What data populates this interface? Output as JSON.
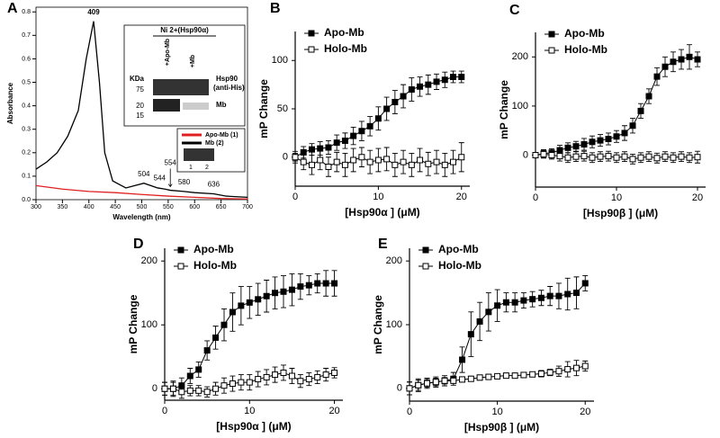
{
  "chart_data": [
    {
      "type": "line",
      "panel": "A",
      "xlabel": "Wavelength (nm)",
      "ylabel": "Absorbance",
      "xlim": [
        300,
        700
      ],
      "ylim": [
        0,
        0.82
      ],
      "xticks": [
        300,
        350,
        400,
        450,
        500,
        550,
        600,
        650,
        700
      ],
      "yticks": [
        {
          "value": 0,
          "label": "0.0"
        },
        0.1,
        0.2,
        0.3,
        0.4,
        0.5,
        0.6,
        0.7,
        0.8
      ],
      "series": [
        {
          "name": "Apo-Mb (1)",
          "color": "#e02020",
          "x": [
            300,
            350,
            400,
            450,
            500,
            550,
            600,
            650,
            700
          ],
          "values": [
            0.06,
            0.045,
            0.035,
            0.03,
            0.022,
            0.015,
            0.01,
            0.005,
            0.003
          ]
        },
        {
          "name": "Mb (2)",
          "color": "#000000",
          "x": [
            300,
            320,
            340,
            360,
            380,
            395,
            409,
            420,
            430,
            445,
            470,
            504,
            530,
            544,
            554,
            580,
            600,
            636,
            660,
            700
          ],
          "values": [
            0.13,
            0.16,
            0.2,
            0.27,
            0.38,
            0.6,
            0.76,
            0.5,
            0.2,
            0.08,
            0.05,
            0.07,
            0.05,
            0.045,
            0.04,
            0.035,
            0.03,
            0.025,
            0.015,
            0.01
          ]
        }
      ],
      "annotations": [
        "409",
        "504",
        "544",
        "554",
        "580",
        "636"
      ],
      "inset": {
        "title": "Ni 2+(Hsp90α)",
        "lanes": [
          "+Apo-Mb",
          "+Mb"
        ],
        "unit": "KDa",
        "markers": [
          "75",
          "20",
          "15"
        ],
        "bands": [
          "Hsp90",
          "(anti-His)",
          "Mb"
        ],
        "lane_numbers": [
          "1",
          "2"
        ]
      }
    },
    {
      "type": "line",
      "panel": "B",
      "xlabel": "[Hsp90α ] (μM)",
      "ylabel": "mP Change",
      "xlim": [
        0,
        21
      ],
      "ylim": [
        -30,
        130
      ],
      "xticks": [
        0,
        10,
        20
      ],
      "yticks": [
        0,
        50,
        100
      ],
      "x": [
        0,
        1,
        2,
        3,
        4,
        5,
        6,
        7,
        8,
        9,
        10,
        11,
        12,
        13,
        14,
        15,
        16,
        17,
        18,
        19,
        20
      ],
      "series": [
        {
          "name": "Apo-Mb",
          "color": "#000000",
          "marker": "filled",
          "values": [
            0,
            5,
            8,
            9,
            10,
            15,
            17,
            22,
            27,
            32,
            40,
            50,
            57,
            63,
            70,
            73,
            75,
            78,
            80,
            83,
            83
          ],
          "errors": [
            4,
            6,
            6,
            7,
            7,
            8,
            8,
            9,
            10,
            10,
            12,
            12,
            12,
            12,
            12,
            10,
            10,
            8,
            8,
            6,
            6
          ]
        },
        {
          "name": "Holo-Mb",
          "color": "#000000",
          "marker": "open",
          "values": [
            0,
            -5,
            -8,
            -3,
            -10,
            -5,
            -8,
            -3,
            0,
            -5,
            -3,
            -2,
            -8,
            -5,
            -8,
            -3,
            -7,
            -5,
            -8,
            -5,
            0
          ],
          "errors": [
            6,
            8,
            10,
            10,
            10,
            10,
            12,
            12,
            10,
            12,
            12,
            12,
            12,
            12,
            12,
            12,
            12,
            12,
            12,
            12,
            15
          ]
        }
      ]
    },
    {
      "type": "line",
      "panel": "C",
      "xlabel": "[Hsp90β ] (μM)",
      "ylabel": "mP Change",
      "xlim": [
        0,
        21
      ],
      "ylim": [
        -65,
        250
      ],
      "xticks": [
        0,
        10,
        20
      ],
      "yticks": [
        0,
        100,
        200
      ],
      "x": [
        0,
        1,
        2,
        3,
        4,
        5,
        6,
        7,
        8,
        9,
        10,
        11,
        12,
        13,
        14,
        15,
        16,
        17,
        18,
        19,
        20
      ],
      "series": [
        {
          "name": "Apo-Mb",
          "color": "#000000",
          "marker": "filled",
          "values": [
            0,
            3,
            5,
            10,
            15,
            18,
            22,
            27,
            30,
            33,
            38,
            45,
            60,
            90,
            120,
            160,
            180,
            190,
            195,
            200,
            195
          ],
          "errors": [
            5,
            8,
            8,
            10,
            10,
            10,
            12,
            12,
            12,
            12,
            12,
            15,
            15,
            15,
            15,
            18,
            20,
            20,
            20,
            25,
            15
          ]
        },
        {
          "name": "Holo-Mb",
          "color": "#000000",
          "marker": "open",
          "values": [
            0,
            2,
            0,
            -2,
            -5,
            -3,
            -2,
            -5,
            -3,
            -2,
            -5,
            -3,
            -8,
            -5,
            -3,
            -6,
            -3,
            -5,
            -3,
            -5,
            -4
          ],
          "errors": [
            5,
            8,
            8,
            10,
            10,
            10,
            10,
            10,
            10,
            10,
            10,
            10,
            10,
            10,
            10,
            10,
            10,
            10,
            10,
            10,
            12
          ]
        }
      ]
    },
    {
      "type": "line",
      "panel": "D",
      "xlabel": "[Hsp90α ] (μM)",
      "ylabel": "mP Change",
      "xlim": [
        0,
        21
      ],
      "ylim": [
        -18,
        220
      ],
      "xticks": [
        0,
        10,
        20
      ],
      "yticks": [
        0,
        100,
        200
      ],
      "x": [
        0,
        1,
        2,
        3,
        4,
        5,
        6,
        7,
        8,
        9,
        10,
        11,
        12,
        13,
        14,
        15,
        16,
        17,
        18,
        19,
        20
      ],
      "series": [
        {
          "name": "Apo-Mb",
          "color": "#000000",
          "marker": "filled",
          "values": [
            0,
            0,
            5,
            20,
            30,
            60,
            80,
            100,
            120,
            130,
            135,
            140,
            145,
            150,
            152,
            155,
            160,
            162,
            165,
            165,
            165
          ],
          "errors": [
            10,
            12,
            12,
            12,
            12,
            15,
            18,
            25,
            30,
            30,
            25,
            25,
            25,
            25,
            25,
            25,
            20,
            15,
            15,
            20,
            20
          ]
        },
        {
          "name": "Holo-Mb",
          "color": "#000000",
          "marker": "open",
          "values": [
            0,
            0,
            -5,
            -3,
            -3,
            -5,
            0,
            5,
            8,
            10,
            10,
            15,
            18,
            22,
            25,
            20,
            12,
            15,
            18,
            22,
            25
          ],
          "errors": [
            10,
            10,
            10,
            8,
            8,
            8,
            10,
            12,
            12,
            12,
            12,
            12,
            12,
            12,
            12,
            12,
            10,
            10,
            10,
            10,
            8
          ]
        }
      ]
    },
    {
      "type": "line",
      "panel": "E",
      "xlabel": "[Hsp90β ] (μM)",
      "ylabel": "mP Change",
      "xlim": [
        0,
        21
      ],
      "ylim": [
        -20,
        220
      ],
      "xticks": [
        0,
        10,
        20
      ],
      "yticks": [
        0,
        100,
        200
      ],
      "x": [
        0,
        1,
        2,
        3,
        4,
        5,
        6,
        7,
        8,
        9,
        10,
        11,
        12,
        13,
        14,
        15,
        16,
        17,
        18,
        19,
        20
      ],
      "series": [
        {
          "name": "Apo-Mb",
          "color": "#000000",
          "marker": "filled",
          "values": [
            0,
            5,
            8,
            10,
            12,
            15,
            45,
            85,
            105,
            120,
            130,
            135,
            135,
            138,
            140,
            142,
            145,
            145,
            148,
            150,
            165
          ],
          "errors": [
            10,
            10,
            8,
            8,
            8,
            10,
            20,
            35,
            30,
            30,
            25,
            15,
            15,
            12,
            12,
            12,
            15,
            20,
            25,
            25,
            12
          ]
        },
        {
          "name": "Holo-Mb",
          "color": "#000000",
          "marker": "open",
          "values": [
            0,
            5,
            8,
            10,
            12,
            12,
            14,
            15,
            17,
            18,
            19,
            20,
            20,
            21,
            22,
            23,
            25,
            27,
            30,
            32,
            35
          ],
          "errors": [
            10,
            8,
            6,
            6,
            5,
            4,
            4,
            4,
            4,
            4,
            4,
            4,
            4,
            4,
            4,
            5,
            5,
            8,
            12,
            12,
            8
          ]
        }
      ]
    }
  ]
}
